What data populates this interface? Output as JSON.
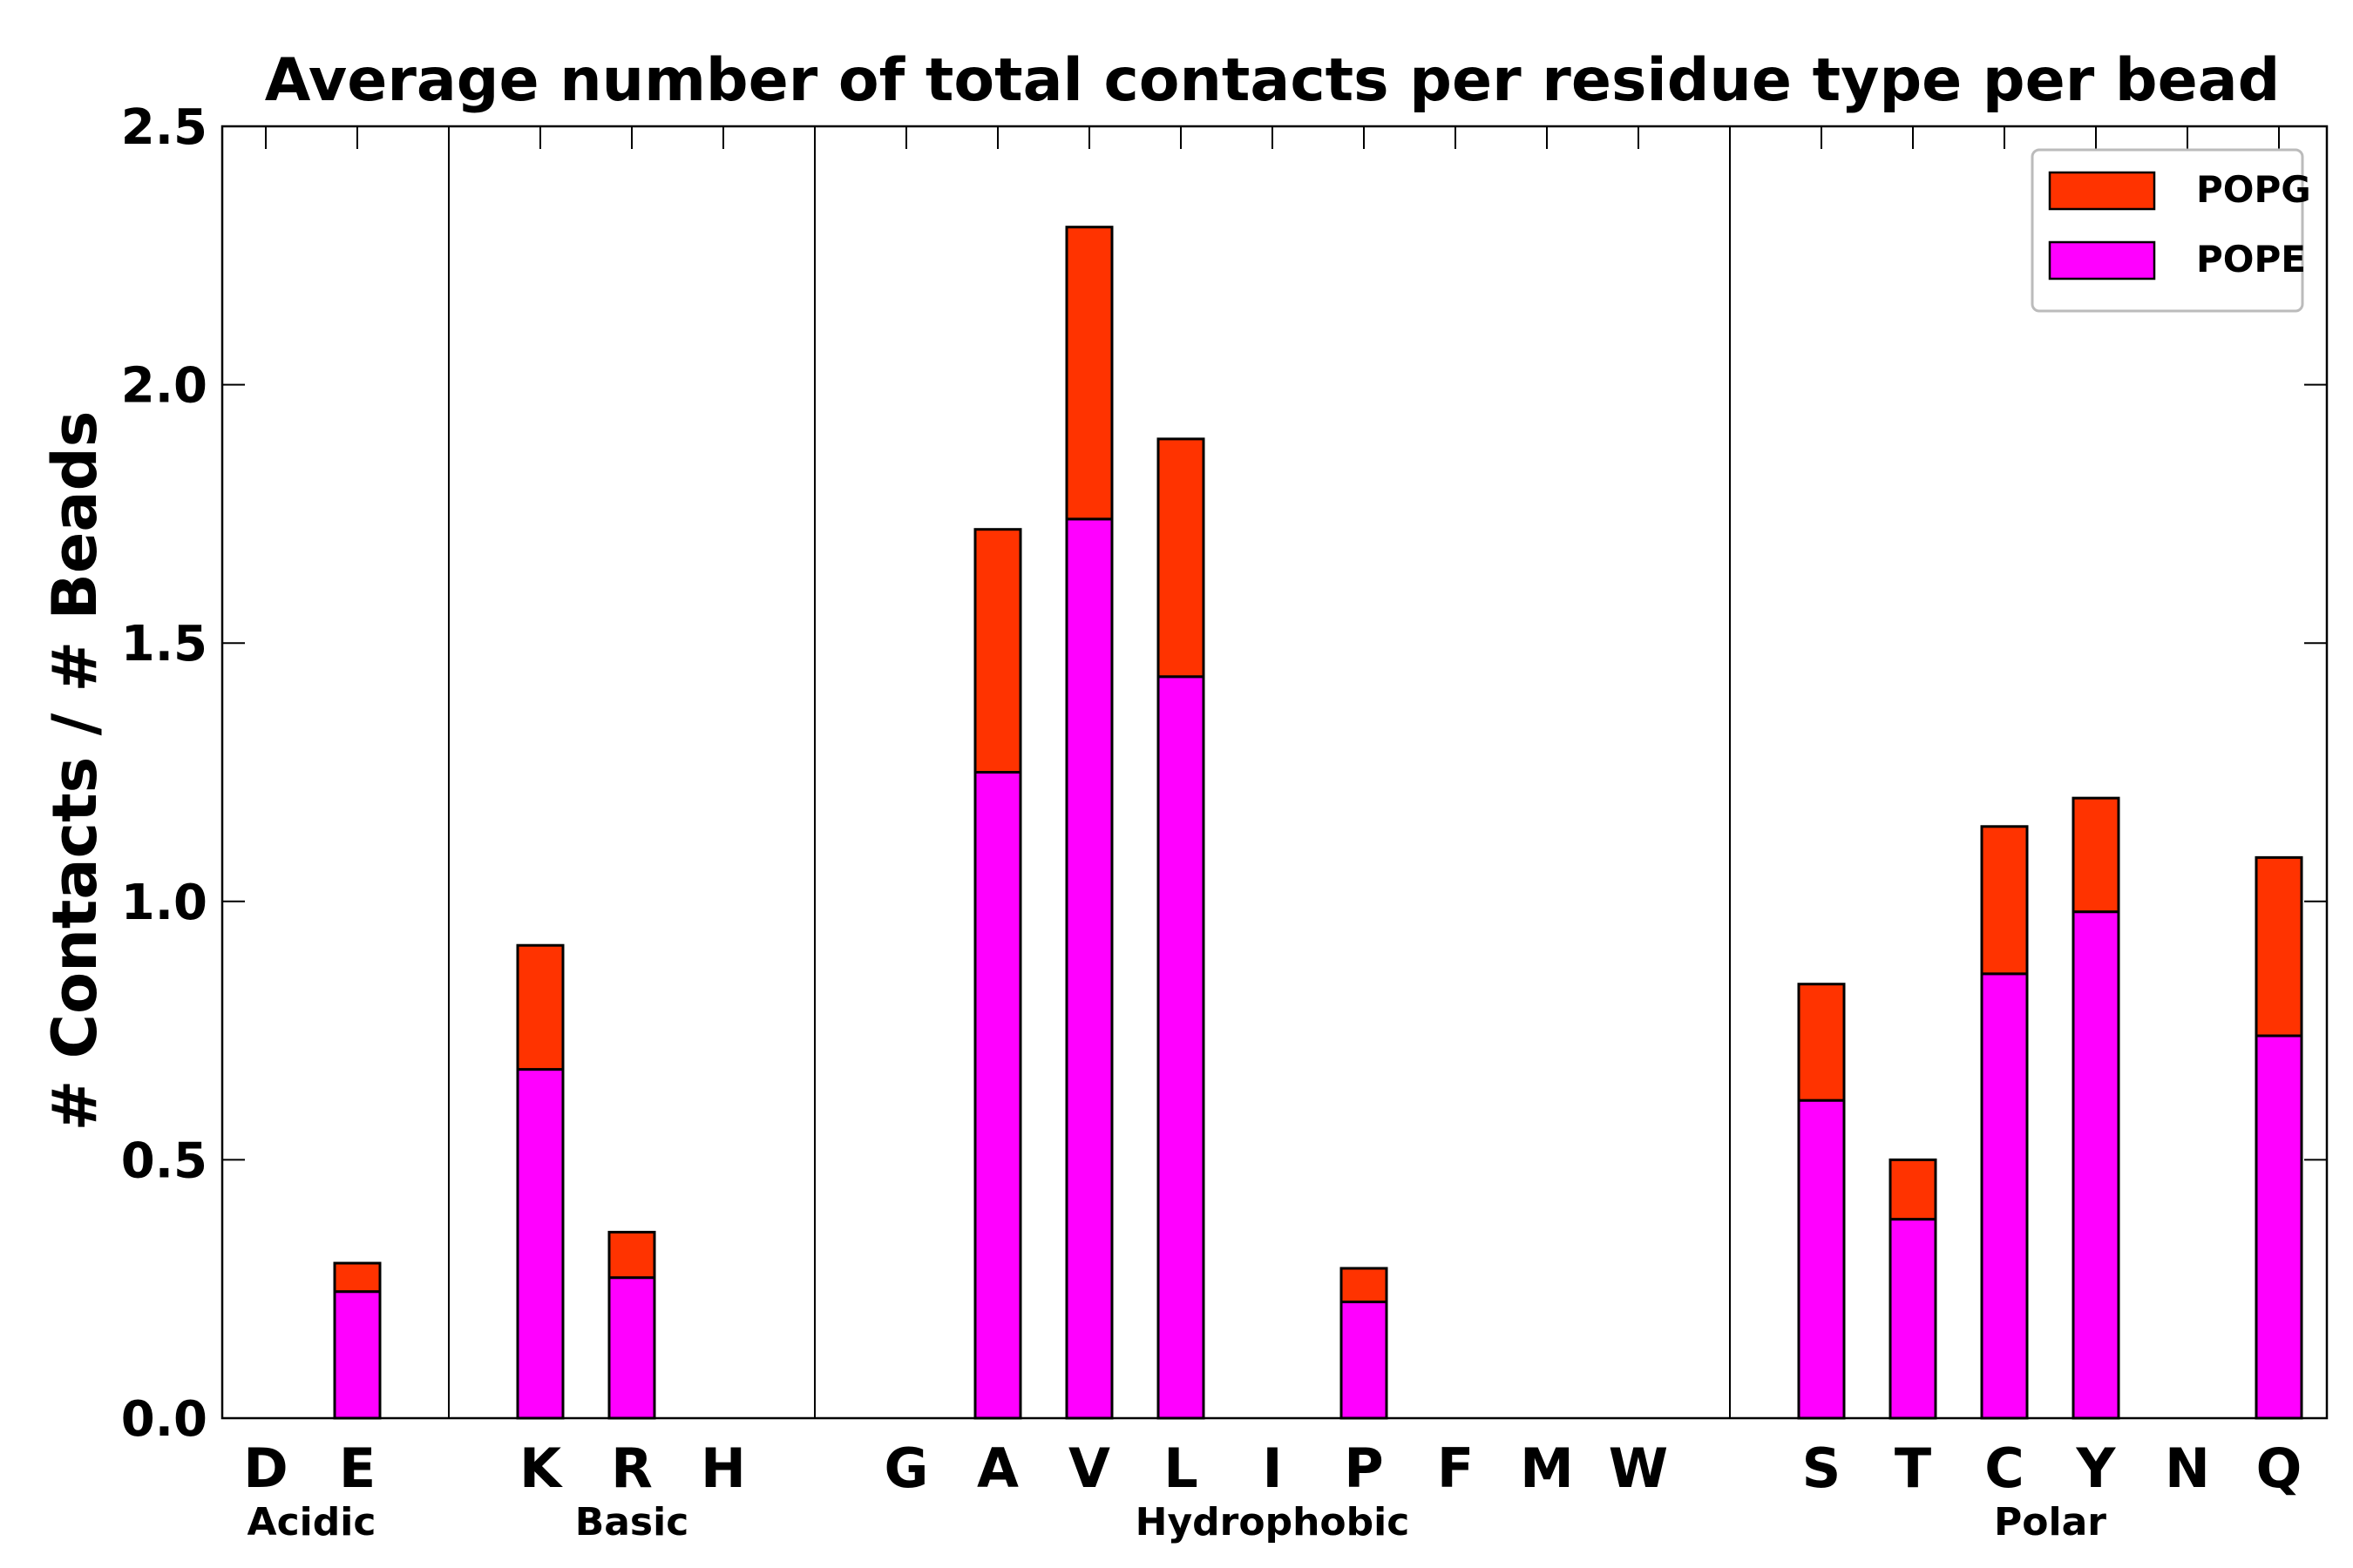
{
  "chart_data": {
    "type": "bar",
    "stacked": true,
    "title": "Average number of total contacts per residue type per bead",
    "xlabel": "",
    "ylabel": "# Contacts / # Beads",
    "ylim": [
      0,
      2.5
    ],
    "yticks": [
      "0.0",
      "0.5",
      "1.0",
      "1.5",
      "2.0",
      "2.5"
    ],
    "categories": [
      "D",
      "E",
      "K",
      "R",
      "H",
      "G",
      "A",
      "V",
      "L",
      "I",
      "P",
      "F",
      "M",
      "W",
      "S",
      "T",
      "C",
      "Y",
      "N",
      "Q"
    ],
    "groups": [
      {
        "name": "Acidic",
        "members": [
          "D",
          "E"
        ]
      },
      {
        "name": "Basic",
        "members": [
          "K",
          "R",
          "H"
        ]
      },
      {
        "name": "Hydrophobic",
        "members": [
          "G",
          "A",
          "V",
          "L",
          "I",
          "P",
          "F",
          "M",
          "W"
        ]
      },
      {
        "name": "Polar",
        "members": [
          "S",
          "T",
          "C",
          "Y",
          "N",
          "Q"
        ]
      }
    ],
    "series": [
      {
        "name": "POPE",
        "color": "#ff00ff",
        "values": [
          0,
          0.245,
          0.675,
          0.272,
          0,
          0,
          1.25,
          1.74,
          1.435,
          0,
          0.225,
          0,
          0,
          0,
          0.615,
          0.385,
          0.86,
          0.98,
          0,
          0.74
        ]
      },
      {
        "name": "POPG",
        "color": "#ff3300",
        "values": [
          0,
          0.055,
          0.24,
          0.088,
          0,
          0,
          0.47,
          0.565,
          0.46,
          0,
          0.065,
          0,
          0,
          0,
          0.225,
          0.115,
          0.285,
          0.22,
          0,
          0.345
        ]
      }
    ],
    "legend": {
      "position": "top-right",
      "entries": [
        "POPG",
        "POPE"
      ]
    }
  }
}
